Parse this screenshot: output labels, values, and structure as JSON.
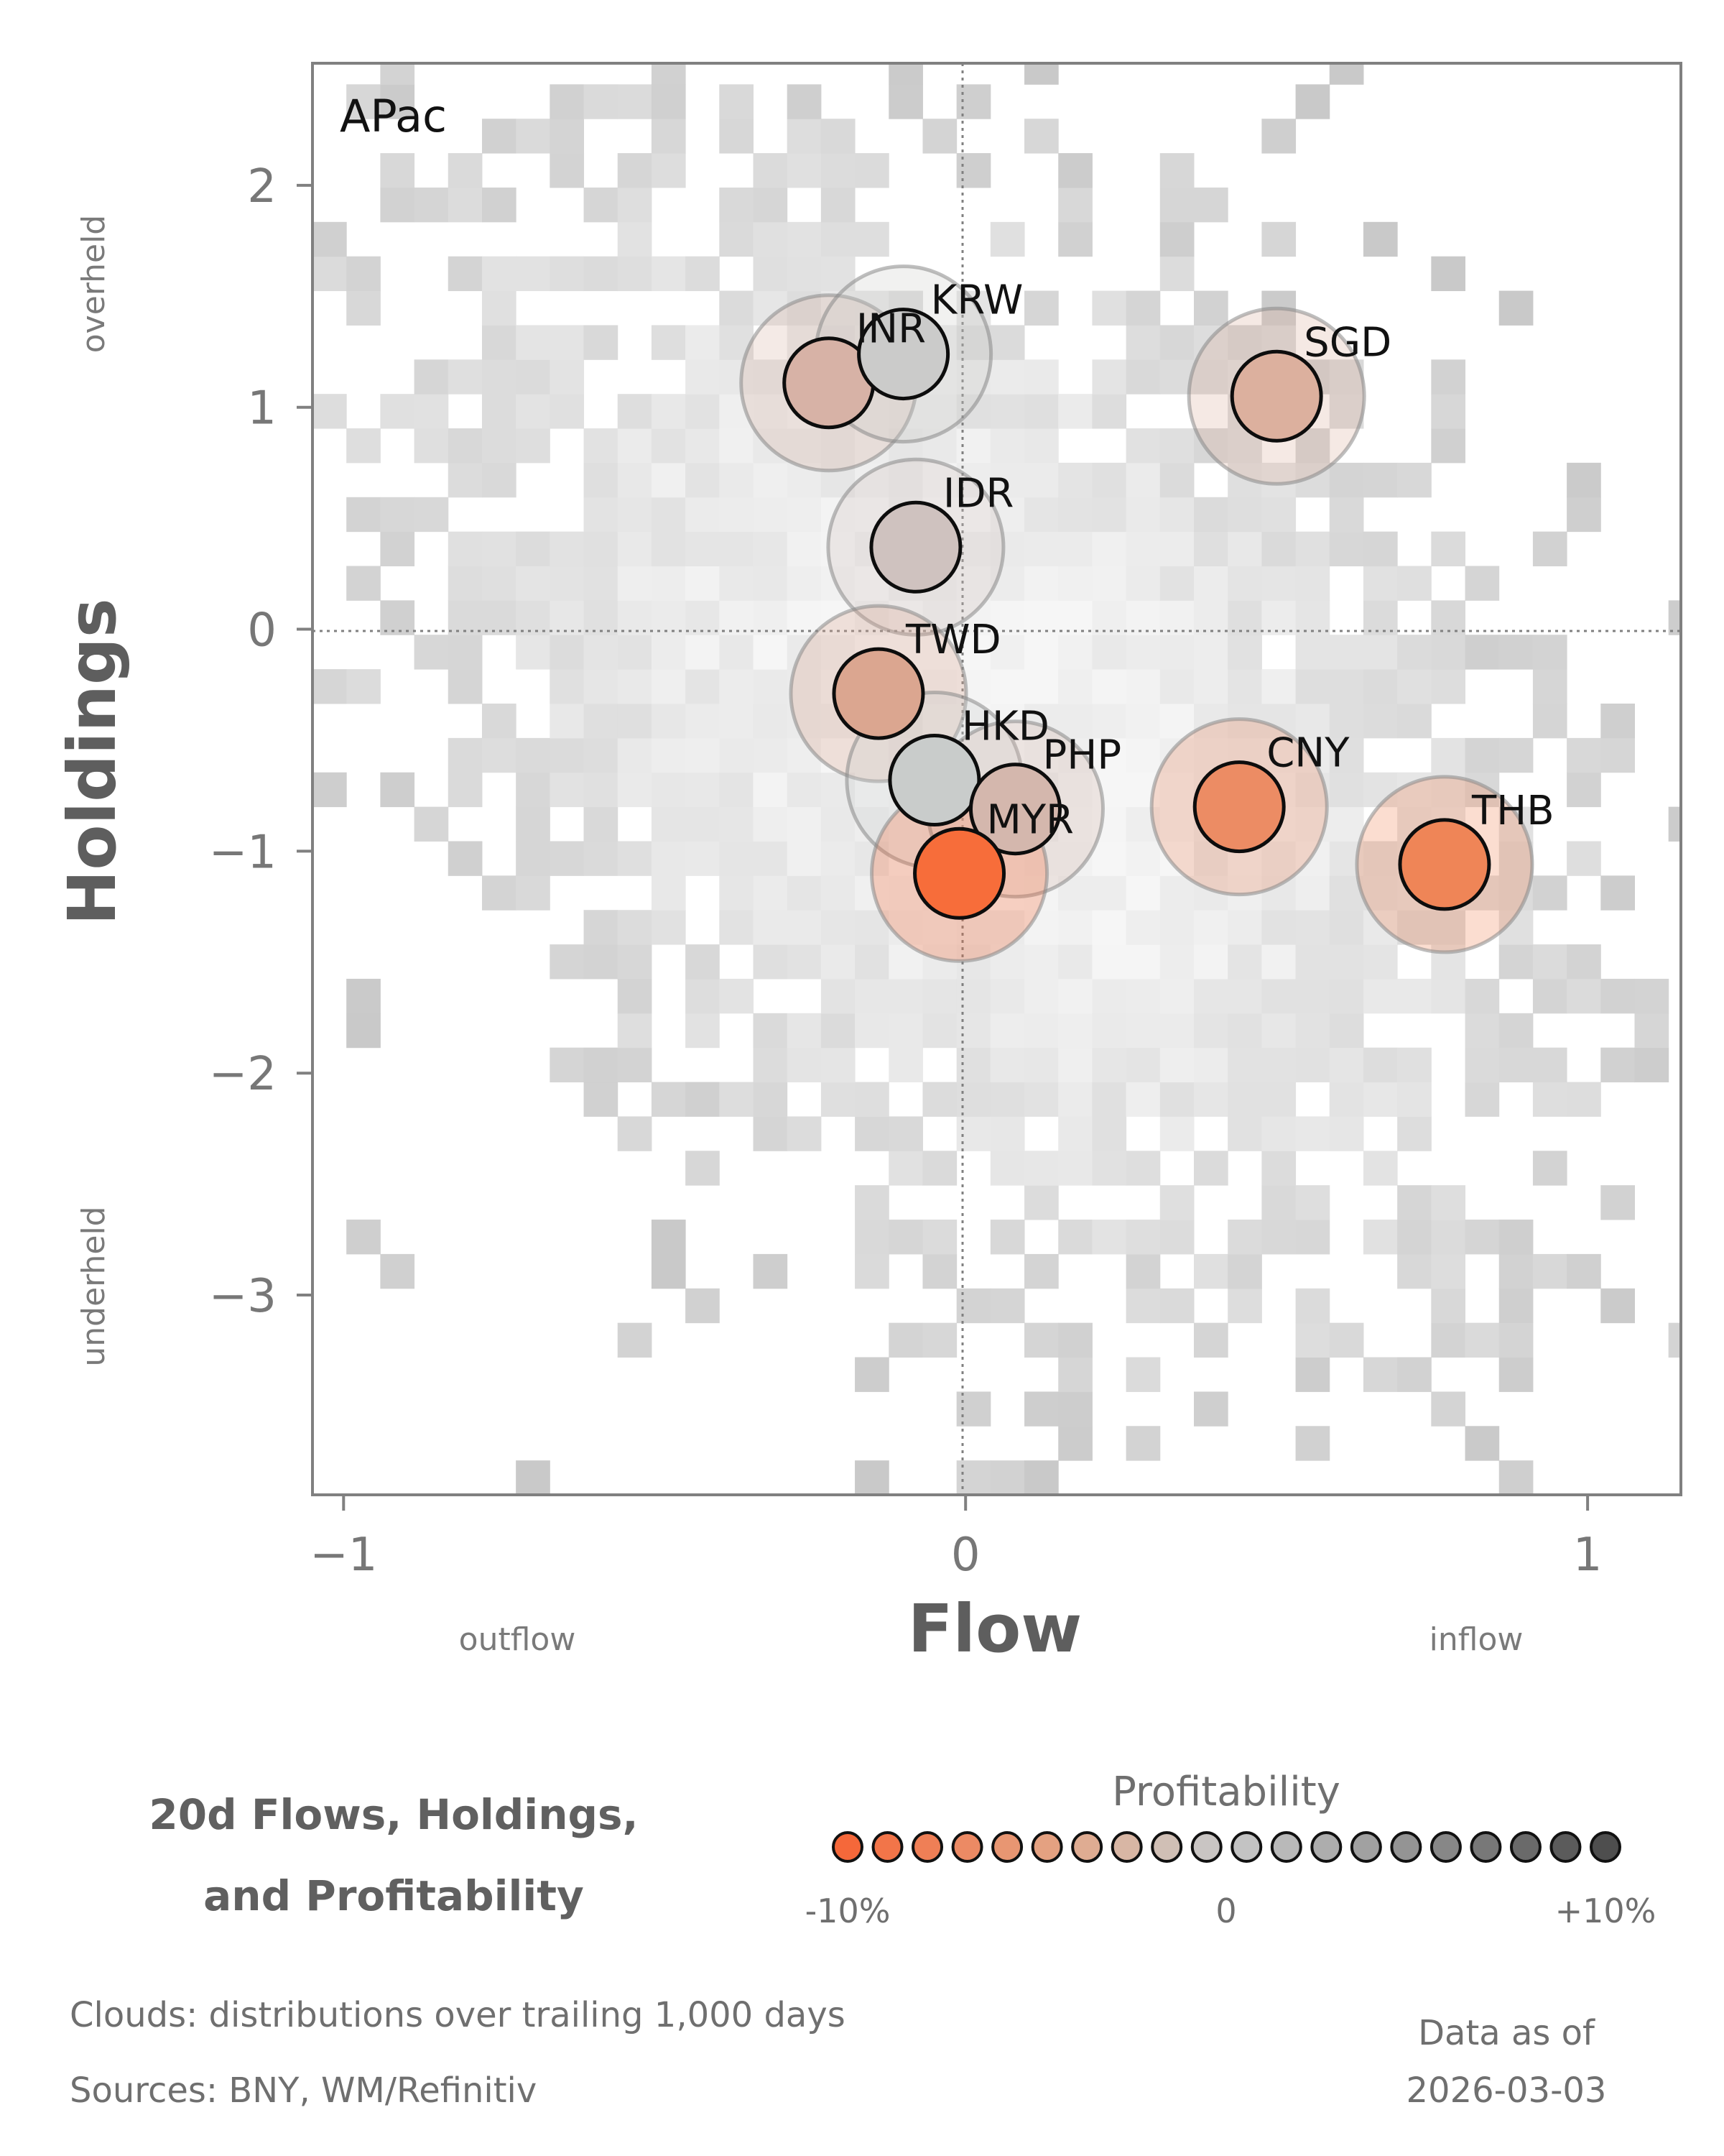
{
  "chart_data": {
    "type": "scatter",
    "region": "APac",
    "xlabel": "Flow",
    "ylabel": "Holdings",
    "xlim": [
      -1.05,
      1.15
    ],
    "ylim": [
      -3.9,
      2.55
    ],
    "xticks": [
      -1,
      0,
      1
    ],
    "xtick_labels": [
      "−1",
      "0",
      "1"
    ],
    "yticks": [
      -3,
      -2,
      -1,
      0,
      1,
      2
    ],
    "ytick_labels": [
      "−3",
      "−2",
      "−1",
      "0",
      "1",
      "2"
    ],
    "x_notes": {
      "low": "outflow",
      "high": "inflow"
    },
    "y_notes": {
      "high": "overheld",
      "low": "underheld"
    },
    "reference_lines": {
      "x": 0,
      "y": 0
    },
    "points": [
      {
        "label": "INR",
        "x": -0.22,
        "y": 1.11,
        "color": "#d7b2a6"
      },
      {
        "label": "KRW",
        "x": -0.1,
        "y": 1.24,
        "color": "#cbcbca"
      },
      {
        "label": "SGD",
        "x": 0.5,
        "y": 1.05,
        "color": "#dcb09e"
      },
      {
        "label": "IDR",
        "x": -0.08,
        "y": 0.37,
        "color": "#cfc2bf"
      },
      {
        "label": "TWD",
        "x": -0.14,
        "y": -0.29,
        "color": "#dba690"
      },
      {
        "label": "HKD",
        "x": -0.05,
        "y": -0.68,
        "color": "#c9cccb"
      },
      {
        "label": "PHP",
        "x": 0.08,
        "y": -0.81,
        "color": "#d4b7ad"
      },
      {
        "label": "MYR",
        "x": -0.01,
        "y": -1.1,
        "color": "#f76d3a"
      },
      {
        "label": "CNY",
        "x": 0.44,
        "y": -0.8,
        "color": "#ec8c64"
      },
      {
        "label": "THB",
        "x": 0.77,
        "y": -1.06,
        "color": "#ef8557"
      }
    ],
    "legend": {
      "title": "Profitability",
      "min_label": "-10%",
      "mid_label": "0",
      "max_label": "+10%",
      "colors": [
        "#f5683a",
        "#f27549",
        "#ef7f56",
        "#ec8a64",
        "#e89672",
        "#e4a181",
        "#dfac92",
        "#d8b6a4",
        "#d0bfb5",
        "#c9c5c3",
        "#c3c3c3",
        "#b9b9b9",
        "#adadad",
        "#a1a1a1",
        "#949494",
        "#878787",
        "#787878",
        "#6a6a6a",
        "#5b5b5b",
        "#4e4e4e"
      ]
    },
    "cloud_colors": {
      "low": "#c9c9c9",
      "high": "#f6f6f6"
    }
  },
  "footer": {
    "title_line1": "20d Flows, Holdings,",
    "title_line2": "and Profitability",
    "clouds_note": "Clouds:  distributions over trailing 1,000 days",
    "sources_note": "Sources:  BNY, WM/Refinitiv",
    "asof_line1": "Data as of",
    "asof_line2": "2026-03-03"
  }
}
